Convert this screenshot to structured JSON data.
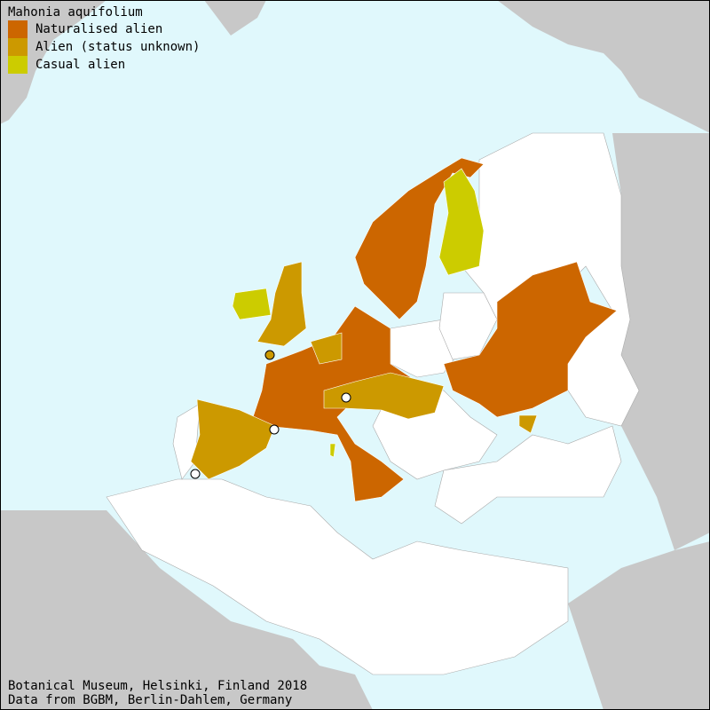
{
  "legend": {
    "title": "Mahonia aquifolium",
    "items": [
      {
        "label": "Naturalised alien",
        "color": "#cc6600"
      },
      {
        "label": "Alien (status unknown)",
        "color": "#cc9900"
      },
      {
        "label": "Casual alien",
        "color": "#cccc00"
      }
    ]
  },
  "footer": {
    "line1": "Botanical Museum, Helsinki, Finland 2018",
    "line2": "Data from BGBM, Berlin-Dahlem, Germany"
  },
  "colors": {
    "sea": "#e0f8fc",
    "outside_land": "#c8c8c8",
    "no_record": "#ffffff",
    "point_record_unknown": "#cc9900",
    "point_record_other": "#ffffff"
  }
}
